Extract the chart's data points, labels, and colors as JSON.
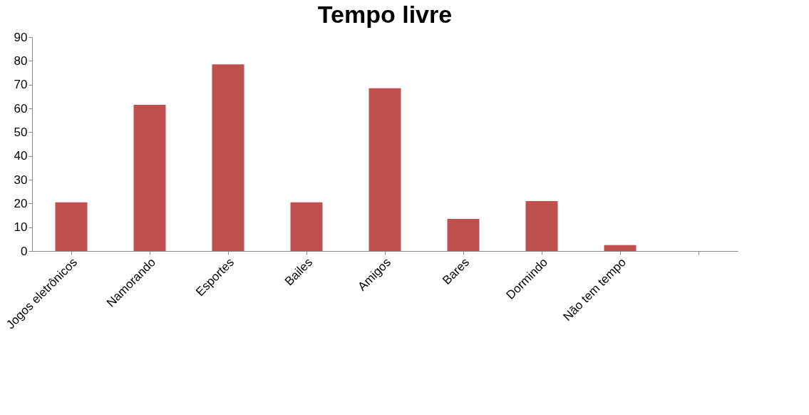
{
  "chart_data": {
    "type": "bar",
    "title": "Tempo livre",
    "categories": [
      "Jogos eletrônicos",
      "Namorando",
      "Esportes",
      "Bailes",
      "Amigos",
      "Bares",
      "Dormindo",
      "Não tem tempo",
      null
    ],
    "values": [
      20.5,
      61.5,
      78.5,
      20.5,
      68.5,
      13.5,
      21,
      2.5,
      null
    ],
    "color": "#c0504d",
    "ylim": [
      0,
      90
    ],
    "yticks": [
      0,
      10,
      20,
      30,
      40,
      50,
      60,
      70,
      80,
      90
    ],
    "grid": false
  }
}
